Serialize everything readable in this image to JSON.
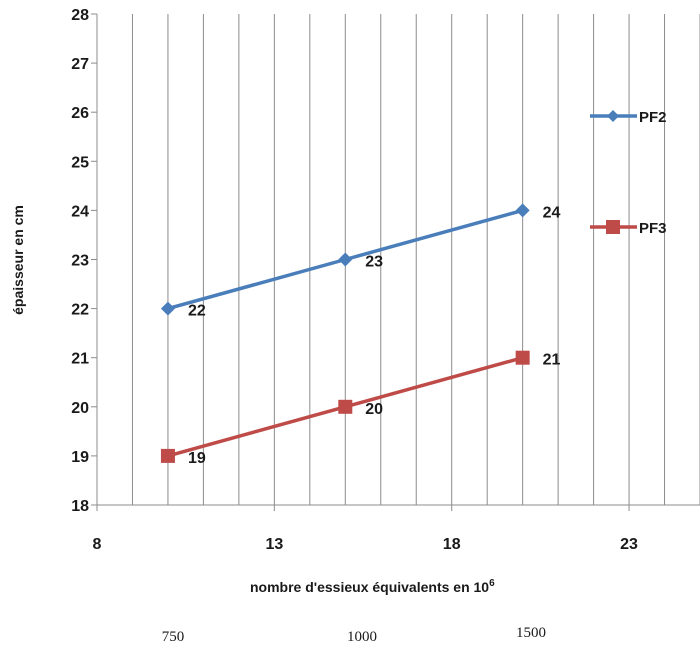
{
  "chart_data": {
    "type": "line",
    "title": "",
    "xlabel": "nombre d'essieux équivalents en 10",
    "xlabel_sup": "6",
    "ylabel": "épaisseur en cm",
    "xlim": [
      8,
      25
    ],
    "ylim": [
      18,
      28
    ],
    "x_ticks": [
      8,
      13,
      18,
      23
    ],
    "y_ticks": [
      18,
      19,
      20,
      21,
      22,
      23,
      24,
      25,
      26,
      27,
      28
    ],
    "grid": "vertical",
    "legend_position": "right",
    "series": [
      {
        "name": "PF2",
        "color": "#4a7ebb",
        "marker": "diamond",
        "x": [
          10,
          15,
          20
        ],
        "values": [
          22,
          23,
          24
        ],
        "labels": [
          "22",
          "23",
          "24"
        ]
      },
      {
        "name": "PF3",
        "color": "#be4b48",
        "marker": "square",
        "x": [
          10,
          15,
          20
        ],
        "values": [
          19,
          20,
          21
        ],
        "labels": [
          "19",
          "20",
          "21"
        ]
      }
    ],
    "secondary_labels": [
      "750",
      "1000",
      "1500"
    ]
  }
}
